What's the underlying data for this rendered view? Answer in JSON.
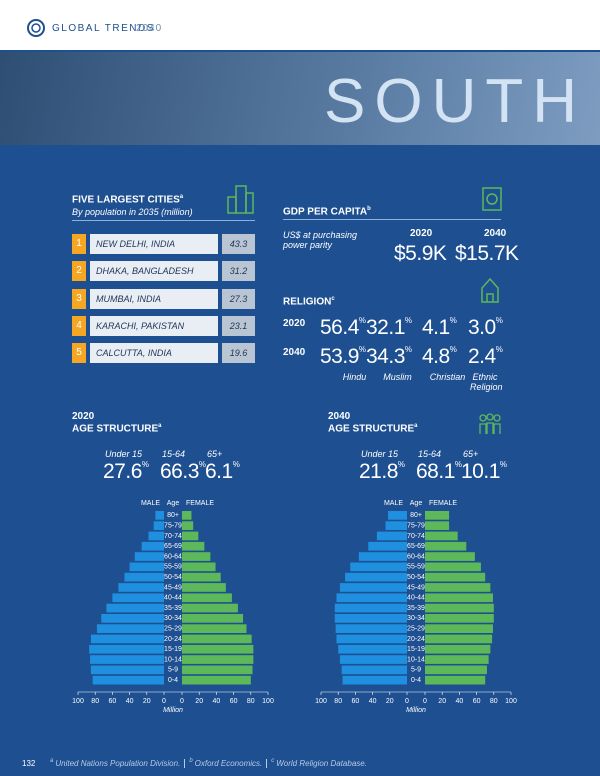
{
  "header": {
    "title": "GLOBAL TRENDS",
    "year": "2040"
  },
  "banner": {
    "title": "SOUTH"
  },
  "cities": {
    "title": "FIVE LARGEST CITIES",
    "note": "a",
    "subtitle": "By population in 2035 (million)",
    "rows": [
      {
        "rank": "1",
        "name": "NEW DELHI, INDIA",
        "value": "43.3"
      },
      {
        "rank": "2",
        "name": "DHAKA, BANGLADESH",
        "value": "31.2"
      },
      {
        "rank": "3",
        "name": "MUMBAI, INDIA",
        "value": "27.3"
      },
      {
        "rank": "4",
        "name": "KARACHI, PAKISTAN",
        "value": "23.1"
      },
      {
        "rank": "5",
        "name": "CALCUTTA, INDIA",
        "value": "19.6"
      }
    ]
  },
  "gdp": {
    "title": "GDP PER CAPITA",
    "note": "b",
    "subtitle": "US$ at purchasing power parity",
    "years": [
      "2020",
      "2040"
    ],
    "values": [
      "$5.9K",
      "$15.7K"
    ]
  },
  "religion": {
    "title": "RELIGION",
    "note": "c",
    "unit": "%",
    "rows": [
      {
        "year": "2020",
        "values": [
          "56.4",
          "32.1",
          "4.1",
          "3.0"
        ]
      },
      {
        "year": "2040",
        "values": [
          "53.9",
          "34.3",
          "4.8",
          "2.4"
        ]
      }
    ],
    "labels": [
      "Hindu",
      "Muslim",
      "Christian",
      "Ethnic Religion"
    ]
  },
  "age_structure": [
    {
      "year": "2020",
      "title": "AGE STRUCTURE",
      "note": "a",
      "unit": "%",
      "groups": [
        "Under 15",
        "15-64",
        "65+"
      ],
      "values": [
        "27.6",
        "66.3",
        "6.1"
      ]
    },
    {
      "year": "2040",
      "title": "AGE STRUCTURE",
      "note": "a",
      "unit": "%",
      "groups": [
        "Under 15",
        "15-64",
        "65+"
      ],
      "values": [
        "21.8",
        "68.1",
        "10.1"
      ]
    }
  ],
  "chart_data": [
    {
      "type": "population_pyramid",
      "category_label": "Age",
      "xlabel": "Million",
      "xlim": [
        0,
        100
      ],
      "xticks": [
        0,
        20,
        40,
        60,
        80,
        100
      ],
      "categories": [
        "80+",
        "75-79",
        "70-74",
        "65-69",
        "60-64",
        "55-59",
        "50-54",
        "45-49",
        "40-44",
        "35-39",
        "30-34",
        "25-29",
        "20-24",
        "15-19",
        "10-14",
        "5-9",
        "0-4"
      ],
      "series": [
        {
          "name": "MALE",
          "color": "#1f8fe0",
          "values": [
            10,
            12,
            18,
            26,
            34,
            40,
            46,
            53,
            60,
            67,
            73,
            78,
            85,
            87,
            86,
            85,
            83
          ]
        },
        {
          "name": "FEMALE",
          "color": "#5db85a",
          "values": [
            11,
            13,
            19,
            26,
            33,
            39,
            45,
            51,
            58,
            65,
            71,
            75,
            81,
            83,
            83,
            82,
            80
          ]
        }
      ]
    },
    {
      "type": "population_pyramid",
      "category_label": "Age",
      "xlabel": "Million",
      "xlim": [
        0,
        100
      ],
      "xticks": [
        0,
        20,
        40,
        60,
        80,
        100
      ],
      "categories": [
        "80+",
        "75-79",
        "70-74",
        "65-69",
        "60-64",
        "55-59",
        "50-54",
        "45-49",
        "40-44",
        "35-39",
        "30-34",
        "25-29",
        "20-24",
        "15-19",
        "10-14",
        "5-9",
        "0-4"
      ],
      "series": [
        {
          "name": "MALE",
          "color": "#1f8fe0",
          "values": [
            22,
            25,
            35,
            45,
            56,
            66,
            72,
            78,
            82,
            84,
            84,
            83,
            82,
            80,
            78,
            76,
            75
          ]
        },
        {
          "name": "FEMALE",
          "color": "#5db85a",
          "values": [
            28,
            28,
            38,
            48,
            58,
            65,
            70,
            76,
            79,
            80,
            80,
            79,
            78,
            76,
            74,
            72,
            70
          ]
        }
      ]
    }
  ],
  "footer": {
    "page": "132",
    "notes": [
      {
        "mark": "a",
        "text": "United Nations Population Division."
      },
      {
        "mark": "b",
        "text": "Oxford Economics."
      },
      {
        "mark": "c",
        "text": "World Religion Database."
      }
    ]
  }
}
